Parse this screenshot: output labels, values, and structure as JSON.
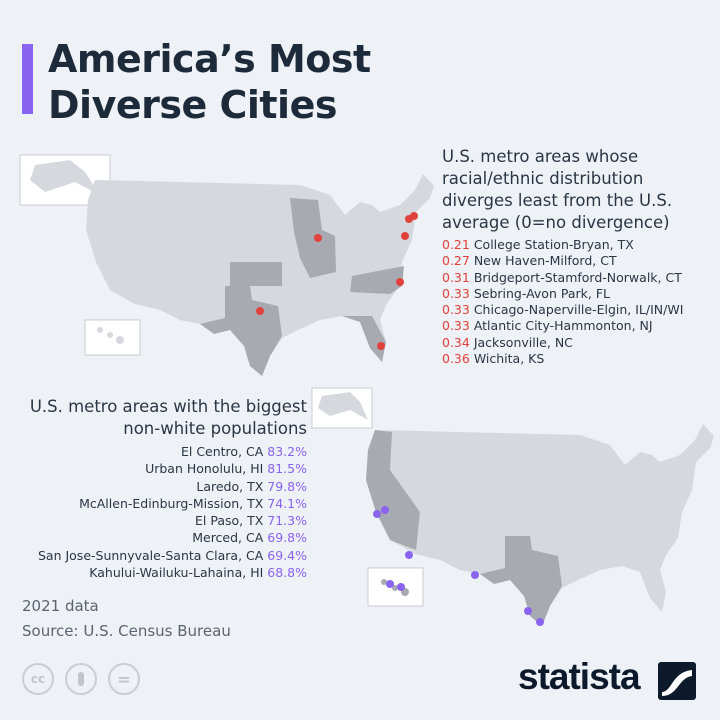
{
  "title_line1": "America’s Most",
  "title_line2": "Diverse Cities",
  "colors": {
    "accent": "#8a63f0",
    "divergence": "#e0413c",
    "map_base": "#d5d8dc",
    "map_highlight": "#a7abb1"
  },
  "least_divergence": {
    "heading": "U.S. metro areas whose racial/ethnic distribution diverges least from the U.S. average (0=no divergence)",
    "items": [
      {
        "value": "0.21",
        "name": "College Station-Bryan, TX"
      },
      {
        "value": "0.27",
        "name": "New Haven-Milford, CT"
      },
      {
        "value": "0.31",
        "name": "Bridgeport-Stamford-Norwalk, CT"
      },
      {
        "value": "0.33",
        "name": "Sebring-Avon Park, FL"
      },
      {
        "value": "0.33",
        "name": "Chicago-Naperville-Elgin, IL/IN/WI"
      },
      {
        "value": "0.33",
        "name": "Atlantic City-Hammonton, NJ"
      },
      {
        "value": "0.34",
        "name": "Jacksonville, NC"
      },
      {
        "value": "0.36",
        "name": "Wichita, KS"
      }
    ]
  },
  "non_white": {
    "heading": "U.S. metro areas with the biggest non-white populations",
    "items": [
      {
        "name": "El Centro, CA",
        "value": "83.2%"
      },
      {
        "name": "Urban Honolulu, HI",
        "value": "81.5%"
      },
      {
        "name": "Laredo, TX",
        "value": "79.8%"
      },
      {
        "name": "McAllen-Edinburg-Mission, TX",
        "value": "74.1%"
      },
      {
        "name": "El Paso, TX",
        "value": "71.3%"
      },
      {
        "name": "Merced, CA",
        "value": "69.8%"
      },
      {
        "name": "San Jose-Sunnyvale-Santa Clara, CA",
        "value": "69.4%"
      },
      {
        "name": "Kahului-Wailuku-Lahaina, HI",
        "value": "68.8%"
      }
    ]
  },
  "footnote": "2021 data",
  "source": "Source: U.S. Census Bureau",
  "license_icons": [
    "cc-icon",
    "attribution-icon",
    "no-derivatives-icon"
  ],
  "license_cc_text": "cc",
  "license_nd_text": "=",
  "brand": "statista"
}
